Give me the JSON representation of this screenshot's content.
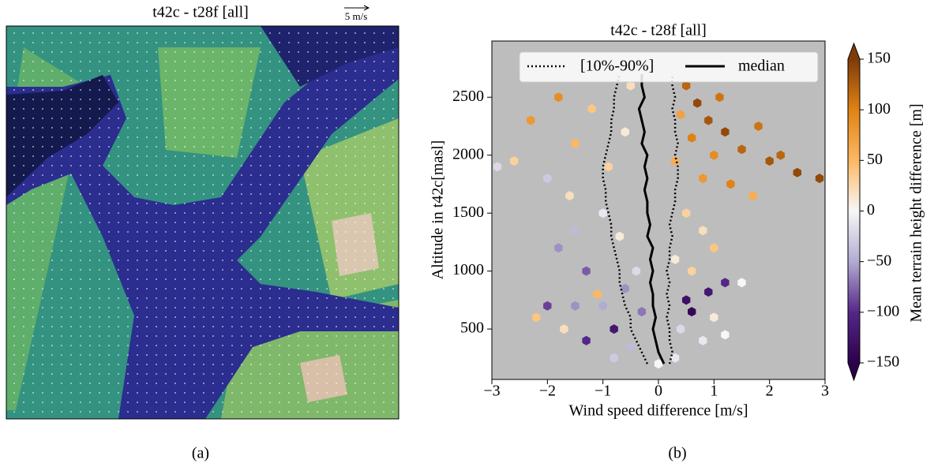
{
  "chart_data": [
    {
      "type": "map",
      "title": "t42c - t28f [all]",
      "scale_label": "5 m/s",
      "caption": "(a)"
    },
    {
      "type": "hexbin",
      "title": "t42c - t28f [all]",
      "xlabel": "Wind speed difference [m/s]",
      "ylabel": "Altitude in t42c[masl]",
      "caption": "(b)",
      "background": "#bdbdbd",
      "xlim": [
        -3,
        3
      ],
      "xticks": [
        {
          "value": -3,
          "label": "−3"
        },
        {
          "value": -2,
          "label": "−2"
        },
        {
          "value": -1,
          "label": "−1"
        },
        0,
        1,
        2,
        3
      ],
      "ylim": [
        65,
        2985
      ],
      "yticks": [
        500,
        1000,
        1500,
        2000,
        2500
      ],
      "colorbar": {
        "label": "Mean terrain height difference [m]",
        "lim": [
          -150,
          150
        ],
        "ticks": [
          {
            "value": -150,
            "label": "−150"
          },
          {
            "value": -100,
            "label": "−100"
          },
          {
            "value": -50,
            "label": "−50"
          },
          0,
          50,
          100,
          150
        ],
        "colormap": [
          "#2d004b",
          "#542788",
          "#b2abd2",
          "#f7f7f7",
          "#fdb863",
          "#e08214",
          "#7f3b08"
        ]
      },
      "cells": {
        "x": [
          0.5,
          0.7,
          0.9,
          1.2,
          1.5,
          2.0,
          2.5,
          2.9,
          1.8,
          0.6,
          1.0,
          0.8,
          1.3,
          0.4,
          0.3,
          1.7,
          2.2,
          1.1,
          -1.8,
          -2.3,
          -1.5,
          -2.6,
          -1.2,
          -0.9,
          -2.0,
          -1.6,
          -0.5,
          -0.6,
          -2.9,
          -1.0,
          -1.5,
          -0.7,
          0.5,
          0.8,
          -1.8,
          1.0,
          0.3,
          -0.4,
          -1.3,
          0.6,
          1.5,
          -2.0,
          -1.5,
          -1.0,
          0.5,
          0.9,
          1.2,
          0.6,
          -0.8,
          -1.3,
          -0.5,
          -1.7,
          -2.2,
          0.4,
          0.8,
          1.2,
          0.3,
          0.0,
          -0.8,
          -1.1,
          1.0,
          -0.3,
          -0.6
        ],
        "y": [
          2600,
          2450,
          2300,
          2200,
          2050,
          1950,
          1850,
          1800,
          2250,
          2150,
          2000,
          1800,
          1750,
          2350,
          1950,
          1650,
          2000,
          2500,
          2500,
          2300,
          2100,
          1950,
          2400,
          1900,
          1800,
          1650,
          2600,
          2200,
          1900,
          1500,
          1350,
          1300,
          1500,
          1350,
          1200,
          1200,
          1100,
          1000,
          1000,
          1000,
          900,
          700,
          700,
          700,
          750,
          820,
          900,
          650,
          500,
          400,
          350,
          500,
          600,
          500,
          400,
          450,
          250,
          200,
          250,
          800,
          600,
          650,
          850
        ],
        "c": [
          120,
          140,
          130,
          140,
          120,
          130,
          140,
          140,
          110,
          100,
          90,
          80,
          100,
          70,
          60,
          60,
          120,
          110,
          90,
          80,
          50,
          30,
          40,
          30,
          -30,
          20,
          20,
          10,
          -20,
          -10,
          -40,
          10,
          30,
          20,
          -60,
          40,
          10,
          -20,
          -80,
          30,
          0,
          -90,
          -60,
          -50,
          -130,
          -120,
          -100,
          -140,
          -120,
          -100,
          -40,
          20,
          40,
          -20,
          -10,
          0,
          -10,
          0,
          -30,
          50,
          10,
          -70,
          -60
        ]
      },
      "altitudes": [
        200,
        300,
        400,
        500,
        600,
        700,
        800,
        900,
        1000,
        1100,
        1200,
        1300,
        1400,
        1500,
        1600,
        1700,
        1800,
        1900,
        2000,
        2100,
        2200,
        2300,
        2400,
        2500,
        2600,
        2700
      ],
      "series": [
        {
          "name": "[10%-90%]",
          "color": "#000000",
          "dash": true,
          "values": [
            -0.2,
            -0.3,
            -0.4,
            -0.5,
            -0.5,
            -0.6,
            -0.65,
            -0.7,
            -0.7,
            -0.75,
            -0.8,
            -0.85,
            -0.85,
            -0.9,
            -0.95,
            -0.95,
            -1.0,
            -1.0,
            -0.95,
            -0.9,
            -0.85,
            -0.85,
            -0.8,
            -0.8,
            -0.75,
            -0.7
          ],
          "values_high": [
            0.2,
            0.25,
            0.2,
            0.2,
            0.15,
            0.2,
            0.15,
            0.2,
            0.15,
            0.2,
            0.2,
            0.25,
            0.2,
            0.25,
            0.3,
            0.3,
            0.35,
            0.35,
            0.3,
            0.35,
            0.3,
            0.3,
            0.25,
            0.3,
            0.25,
            0.25
          ]
        },
        {
          "name": "median",
          "color": "#000000",
          "dash": false,
          "values": [
            0.1,
            0.0,
            -0.05,
            -0.1,
            -0.05,
            -0.1,
            -0.1,
            -0.15,
            -0.1,
            -0.15,
            -0.1,
            -0.2,
            -0.15,
            -0.2,
            -0.2,
            -0.25,
            -0.2,
            -0.25,
            -0.2,
            -0.3,
            -0.25,
            -0.3,
            -0.35,
            -0.25,
            -0.3,
            -0.3
          ]
        }
      ]
    }
  ]
}
